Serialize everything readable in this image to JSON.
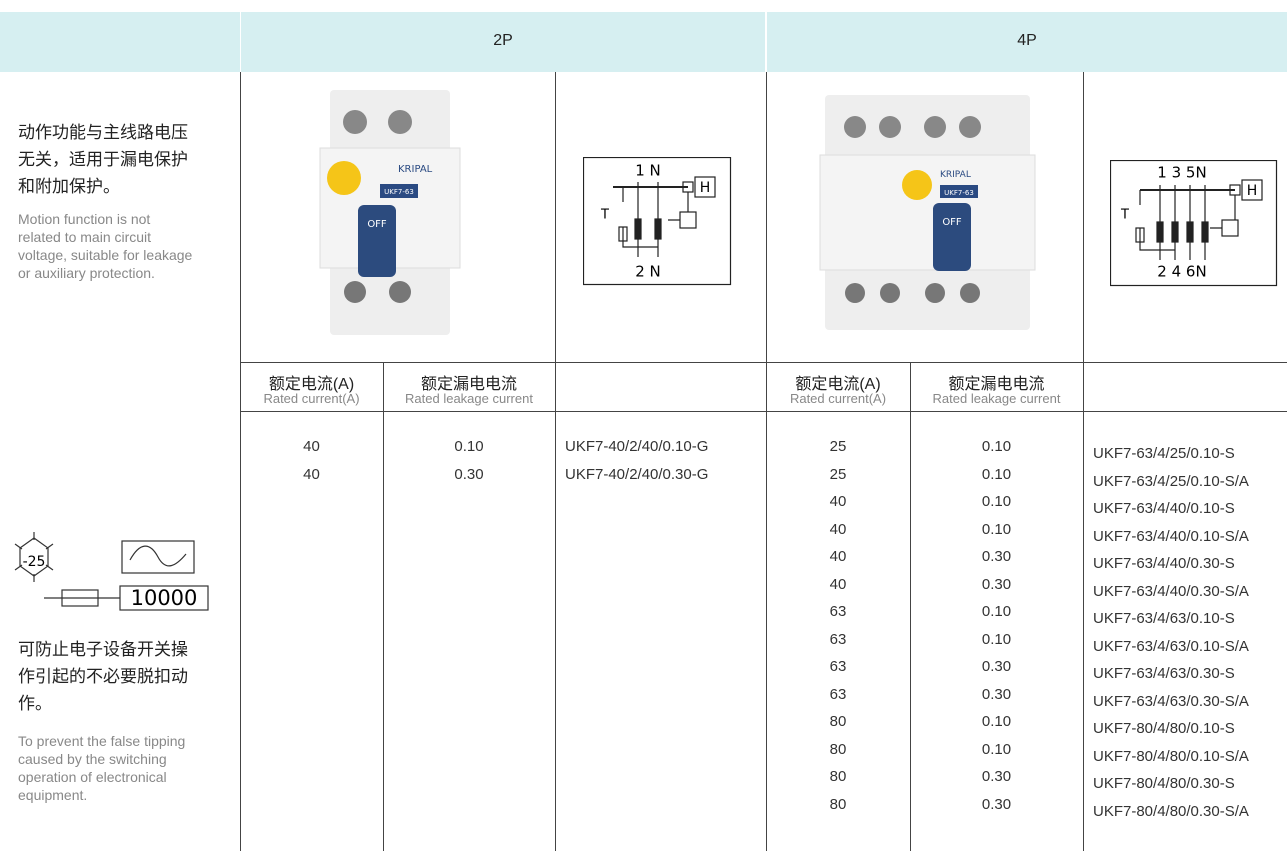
{
  "header": {
    "col_2p": "2P",
    "col_4p": "4P"
  },
  "left_panel": {
    "feature1_zh": [
      "动作功能与主线路电压",
      "无关，适用于漏电保护",
      "和附加保护。"
    ],
    "feature1_en": [
      "Motion function is not",
      "related to main circuit",
      "voltage, suitable for leakage",
      "or auxiliary protection."
    ],
    "icon_temperature": "-25",
    "icon_capacity": "10000",
    "feature2_zh": [
      "可防止电子设备开关操",
      "作引起的不必要脱扣动",
      "作。"
    ],
    "feature2_en": [
      "To prevent the false tipping",
      "caused by the switching",
      "operation of electronical",
      "equipment."
    ]
  },
  "product_images": {
    "2p": {
      "brand": "KRIPAL",
      "model": "UKF7-63",
      "switch": "OFF"
    },
    "4p": {
      "brand": "KRIPAL",
      "model": "UKF7-63",
      "switch": "OFF"
    }
  },
  "diagrams": {
    "2p": {
      "top": "1 N",
      "bottom": "2 N",
      "test": "T",
      "handle": "H"
    },
    "4p": {
      "top": "1 3 5N",
      "bottom": "2 4 6N",
      "test": "T",
      "handle": "H"
    }
  },
  "table_header": {
    "current_zh": "额定电流(A)",
    "current_en": "Rated current(A)",
    "leakage_zh": "额定漏电电流",
    "leakage_en": "Rated leakage current"
  },
  "rows_2p": [
    [
      "40",
      "0.10",
      "UKF7-40/2/40/0.10-G"
    ],
    [
      "40",
      "0.30",
      "UKF7-40/2/40/0.30-G"
    ]
  ],
  "rows_4p": [
    [
      "25",
      "0.10",
      "UKF7-63/4/25/0.10-S"
    ],
    [
      "25",
      "0.10",
      "UKF7-63/4/25/0.10-S/A"
    ],
    [
      "40",
      "0.10",
      "UKF7-63/4/40/0.10-S"
    ],
    [
      "40",
      "0.10",
      "UKF7-63/4/40/0.10-S/A"
    ],
    [
      "40",
      "0.30",
      "UKF7-63/4/40/0.30-S"
    ],
    [
      "40",
      "0.30",
      "UKF7-63/4/40/0.30-S/A"
    ],
    [
      "63",
      "0.10",
      "UKF7-63/4/63/0.10-S"
    ],
    [
      "63",
      "0.10",
      "UKF7-63/4/63/0.10-S/A"
    ],
    [
      "63",
      "0.30",
      "UKF7-63/4/63/0.30-S"
    ],
    [
      "63",
      "0.30",
      "UKF7-63/4/63/0.30-S/A"
    ],
    [
      "80",
      "0.10",
      "UKF7-80/4/80/0.10-S"
    ],
    [
      "80",
      "0.10",
      "UKF7-80/4/80/0.10-S/A"
    ],
    [
      "80",
      "0.30",
      "UKF7-80/4/80/0.30-S"
    ],
    [
      "80",
      "0.30",
      "UKF7-80/4/80/0.30-S/A"
    ]
  ]
}
